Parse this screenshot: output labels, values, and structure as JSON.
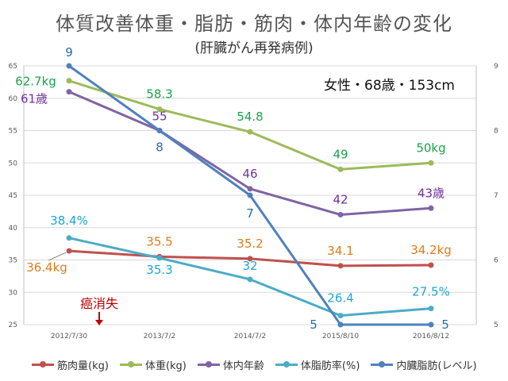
{
  "title": "体質改善体重・脂肪・筋肉・体内年齢の変化",
  "subtitle": "(肝臓がん再発病例)",
  "annotation": "女性・68歳・153cm",
  "chart_data": {
    "type": "line",
    "categories": [
      "2012/7/30",
      "2013/7/2",
      "2014/7/2",
      "2015/8/10",
      "2016/8/12"
    ],
    "y_left": {
      "range": [
        25,
        65
      ],
      "ticks": [
        25,
        30,
        35,
        40,
        45,
        50,
        55,
        60,
        65
      ]
    },
    "y_right": {
      "range": [
        5,
        9
      ],
      "ticks": [
        5,
        6,
        7,
        8,
        9
      ]
    },
    "grid": true,
    "legend_position": "bottom",
    "series": [
      {
        "name": "筋肉量(kg)",
        "color": "#c0504d",
        "axis": "left",
        "values": [
          36.4,
          35.5,
          35.2,
          34.1,
          34.2
        ],
        "labels": [
          "36.4kg",
          "35.5",
          "35.2",
          "34.1",
          "34.2kg"
        ],
        "label_color": "#e07b1a"
      },
      {
        "name": "体重(kg)",
        "color": "#9bbb59",
        "axis": "left",
        "values": [
          62.7,
          58.3,
          54.8,
          49,
          50
        ],
        "labels": [
          "62.7kg",
          "58.3",
          "54.8",
          "49",
          "50kg"
        ],
        "label_color": "#1aa34a"
      },
      {
        "name": "体内年齢",
        "color": "#8064a2",
        "axis": "left",
        "values": [
          61,
          55,
          46,
          42,
          43
        ],
        "labels": [
          "61歳",
          "55",
          "46",
          "42",
          "43歳"
        ],
        "label_color": "#7030a0"
      },
      {
        "name": "体脂肪率(%)",
        "color": "#4bacc6",
        "axis": "left",
        "values": [
          38.4,
          35.3,
          32,
          26.4,
          27.5
        ],
        "labels": [
          "38.4%",
          "35.3",
          "32",
          "26.4",
          "27.5%"
        ],
        "label_color": "#1aa7d6"
      },
      {
        "name": "内臓脂肪(レベル)",
        "color": "#4f81bd",
        "axis": "right",
        "values": [
          9,
          8,
          7,
          5,
          5
        ],
        "labels": [
          "9",
          "8",
          "7",
          "5",
          "5"
        ],
        "label_color": "#1f6fa8"
      }
    ],
    "annotations": [
      {
        "text": "癌消失",
        "category": "2012/7/30",
        "color": "#c00000"
      }
    ]
  }
}
